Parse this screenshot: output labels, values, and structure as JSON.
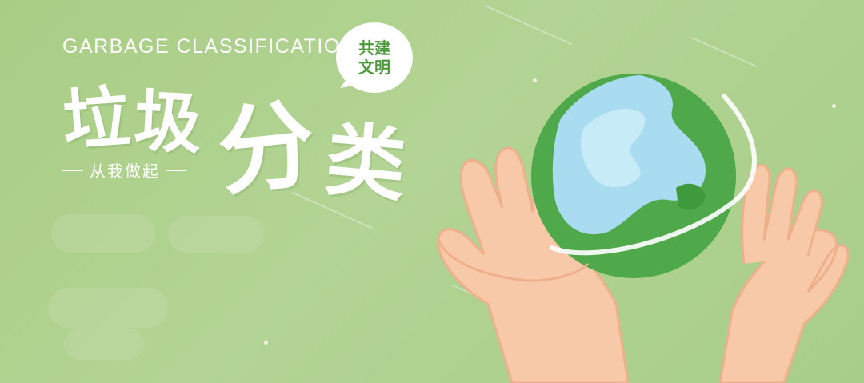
{
  "banner": {
    "subtitle_en": "GARBAGE CLASSIFICATION",
    "title_chars": [
      "垃",
      "圾",
      "分",
      "类"
    ],
    "slogan": "从我做起",
    "bubble_line1": "共建",
    "bubble_line2": "文明"
  },
  "colors": {
    "background": "#b3d494",
    "text": "#ffffff",
    "bubble_text": "#4c9a3a",
    "globe_land": "#4fa84a",
    "globe_water": "#a9dcf0",
    "hand_skin": "#f8c9a8"
  },
  "icons": [
    "globe-icon",
    "hands-illustration",
    "speech-bubble"
  ]
}
